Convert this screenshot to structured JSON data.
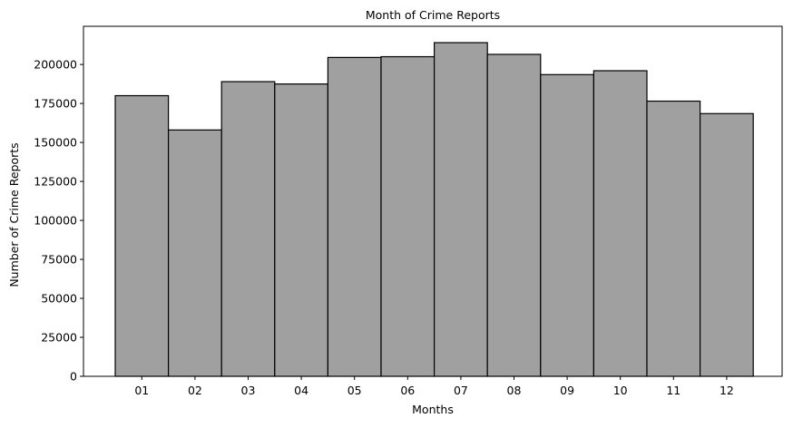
{
  "chart_data": {
    "type": "bar",
    "title": "Month of Crime Reports",
    "xlabel": "Months",
    "ylabel": "Number of Crime Reports",
    "categories": [
      "01",
      "02",
      "03",
      "04",
      "05",
      "06",
      "07",
      "08",
      "09",
      "10",
      "11",
      "12"
    ],
    "values": [
      180000,
      158000,
      189000,
      187500,
      204500,
      205000,
      214000,
      206500,
      193500,
      196000,
      176500,
      168500
    ],
    "ylim": [
      0,
      224500
    ],
    "yticks": [
      0,
      25000,
      50000,
      75000,
      100000,
      125000,
      150000,
      175000,
      200000
    ],
    "grid": false,
    "legend": "none",
    "bar_color": "#a0a0a0",
    "bar_edge_color": "#000000"
  }
}
